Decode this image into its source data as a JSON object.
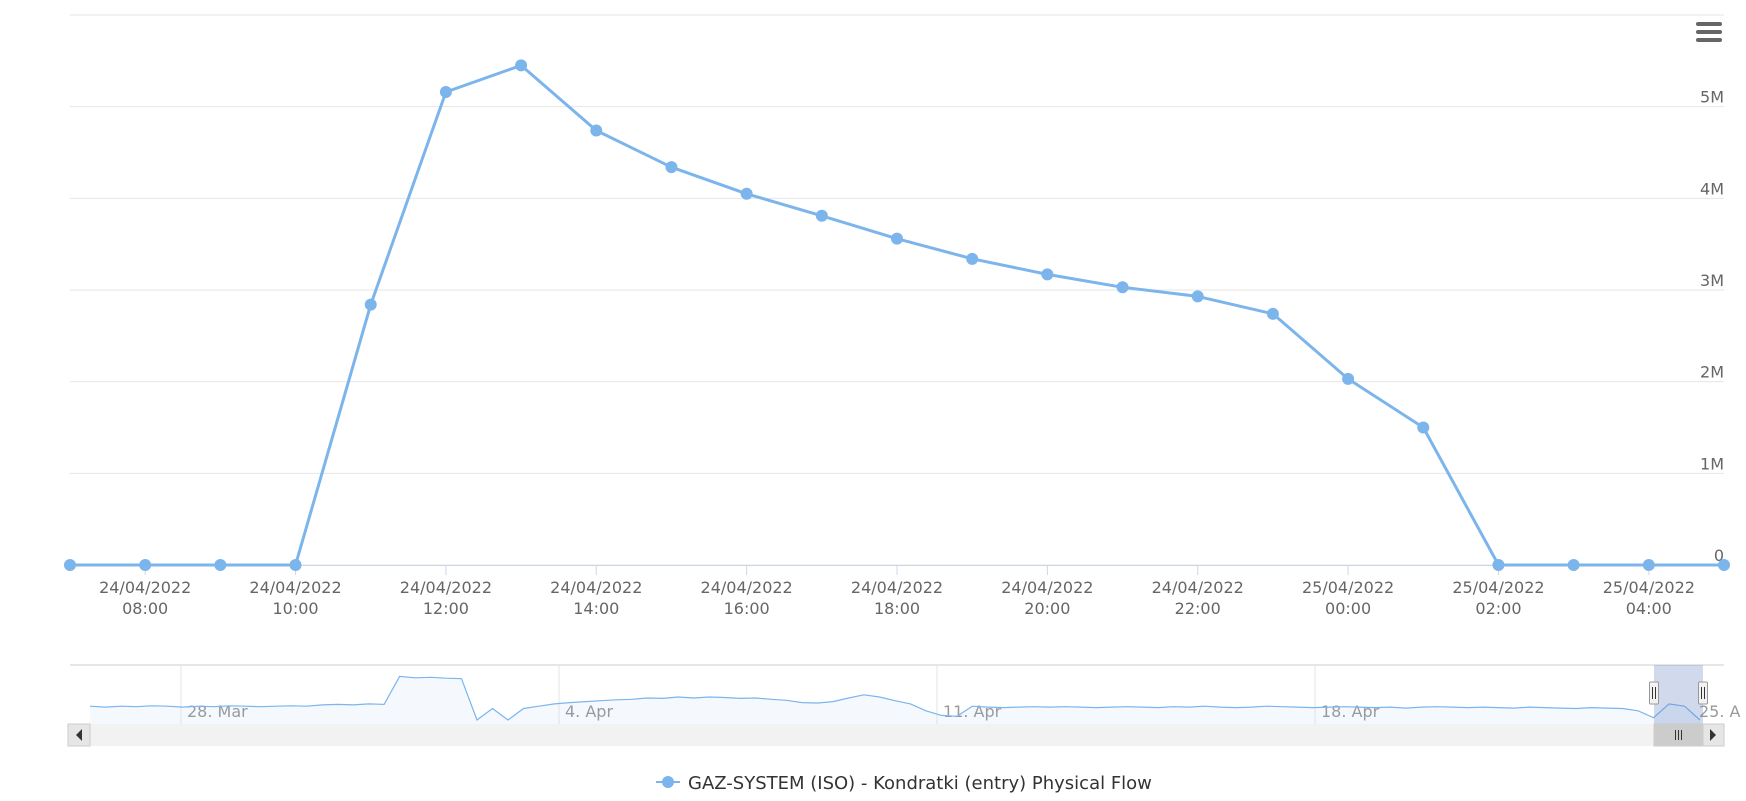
{
  "chart_data": {
    "type": "line",
    "title": "",
    "xlabel": "",
    "ylabel": "",
    "x": [
      "24/04/2022 07:00",
      "24/04/2022 08:00",
      "24/04/2022 09:00",
      "24/04/2022 10:00",
      "24/04/2022 11:00",
      "24/04/2022 12:00",
      "24/04/2022 13:00",
      "24/04/2022 14:00",
      "24/04/2022 15:00",
      "24/04/2022 16:00",
      "24/04/2022 17:00",
      "24/04/2022 18:00",
      "24/04/2022 19:00",
      "24/04/2022 20:00",
      "24/04/2022 21:00",
      "24/04/2022 22:00",
      "24/04/2022 23:00",
      "25/04/2022 00:00",
      "25/04/2022 01:00",
      "25/04/2022 02:00",
      "25/04/2022 03:00",
      "25/04/2022 04:00",
      "25/04/2022 05:00"
    ],
    "series": [
      {
        "name": "GAZ-SYSTEM (ISO) - Kondratki (entry) Physical Flow",
        "color": "#7cb5ec",
        "values": [
          0,
          0,
          0,
          0,
          2840000,
          5160000,
          5450000,
          4740000,
          4340000,
          4050000,
          3810000,
          3560000,
          3340000,
          3170000,
          3030000,
          2930000,
          2740000,
          2030000,
          1500000,
          0,
          0,
          0,
          0
        ]
      }
    ],
    "ylim": [
      0,
      6000000
    ],
    "y_ticks": [
      {
        "value": 0,
        "label": "0"
      },
      {
        "value": 1000000,
        "label": "1M"
      },
      {
        "value": 2000000,
        "label": "2M"
      },
      {
        "value": 3000000,
        "label": "3M"
      },
      {
        "value": 4000000,
        "label": "4M"
      },
      {
        "value": 5000000,
        "label": "5M"
      }
    ],
    "x_ticks": [
      {
        "index": 1,
        "line1": "24/04/2022",
        "line2": "08:00"
      },
      {
        "index": 3,
        "line1": "24/04/2022",
        "line2": "10:00"
      },
      {
        "index": 5,
        "line1": "24/04/2022",
        "line2": "12:00"
      },
      {
        "index": 7,
        "line1": "24/04/2022",
        "line2": "14:00"
      },
      {
        "index": 9,
        "line1": "24/04/2022",
        "line2": "16:00"
      },
      {
        "index": 11,
        "line1": "24/04/2022",
        "line2": "18:00"
      },
      {
        "index": 13,
        "line1": "24/04/2022",
        "line2": "20:00"
      },
      {
        "index": 15,
        "line1": "24/04/2022",
        "line2": "22:00"
      },
      {
        "index": 17,
        "line1": "25/04/2022",
        "line2": "00:00"
      },
      {
        "index": 19,
        "line1": "25/04/2022",
        "line2": "02:00"
      },
      {
        "index": 21,
        "line1": "25/04/2022",
        "line2": "04:00"
      }
    ],
    "grid": true,
    "y_axis_side": "right",
    "legend_position": "bottom-center",
    "navigator": {
      "labels": [
        "28. Mar",
        "4. Apr",
        "11. Apr",
        "18. Apr",
        "25. A"
      ],
      "trend": [
        0.3,
        0.28,
        0.3,
        0.29,
        0.31,
        0.3,
        0.28,
        0.3,
        0.29,
        0.31,
        0.3,
        0.29,
        0.3,
        0.31,
        0.3,
        0.33,
        0.34,
        0.33,
        0.35,
        0.34,
        0.95,
        0.92,
        0.93,
        0.91,
        0.9,
        0.0,
        0.25,
        0.0,
        0.25,
        0.3,
        0.35,
        0.38,
        0.4,
        0.42,
        0.44,
        0.45,
        0.48,
        0.47,
        0.5,
        0.48,
        0.5,
        0.49,
        0.47,
        0.48,
        0.45,
        0.43,
        0.38,
        0.37,
        0.4,
        0.48,
        0.55,
        0.5,
        0.42,
        0.35,
        0.2,
        0.1,
        0.08,
        0.3,
        0.28,
        0.27,
        0.28,
        0.29,
        0.28,
        0.29,
        0.28,
        0.27,
        0.28,
        0.29,
        0.28,
        0.27,
        0.29,
        0.28,
        0.3,
        0.28,
        0.27,
        0.28,
        0.3,
        0.29,
        0.28,
        0.27,
        0.28,
        0.29,
        0.28,
        0.27,
        0.28,
        0.26,
        0.28,
        0.29,
        0.28,
        0.27,
        0.28,
        0.27,
        0.26,
        0.28,
        0.27,
        0.26,
        0.25,
        0.27,
        0.26,
        0.25,
        0.2,
        0.05,
        0.35,
        0.3,
        0.0
      ]
    }
  },
  "ui": {
    "menu_icon": "hamburger-menu-icon",
    "scroll_left_icon": "arrow-left-icon",
    "scroll_right_icon": "arrow-right-icon",
    "scrollbar_grip_icon": "grip-icon"
  }
}
